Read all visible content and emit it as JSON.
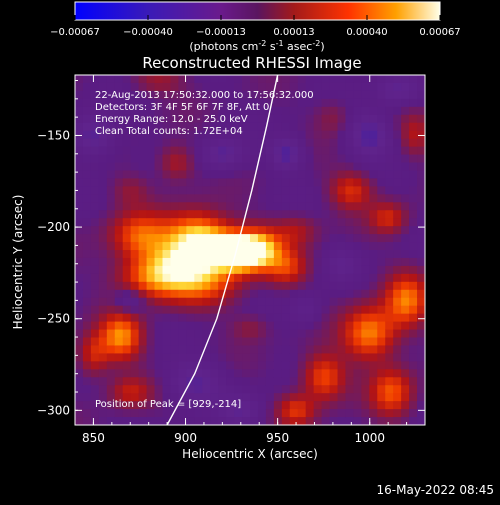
{
  "chart_data": {
    "type": "heatmap",
    "title": "Reconstructed RHESSI Image",
    "xlabel": "Heliocentric X (arcsec)",
    "ylabel": "Heliocentric Y (arcsec)",
    "xlim": [
      840,
      1030
    ],
    "ylim": [
      -308,
      -117
    ],
    "x_ticks": [
      850,
      900,
      950,
      1000
    ],
    "y_ticks": [
      -150,
      -200,
      -250,
      -300
    ],
    "annotations": [
      "22-Aug-2013 17:50:32.000 to 17:56:32.000",
      "Detectors: 3F 4F 5F 6F 7F 8F, Att 0",
      "Energy Range: 12.0 - 25.0 keV",
      "Clean     Total counts: 1.72E+04"
    ],
    "peak_label": "Position of Peak = [929,-214]",
    "peak": [
      929,
      -214
    ],
    "limb_curve": [
      [
        890,
        -308
      ],
      [
        905,
        -280
      ],
      [
        917,
        -250
      ],
      [
        927,
        -215
      ],
      [
        936,
        -180
      ],
      [
        944,
        -145
      ],
      [
        950,
        -117
      ]
    ],
    "colorbar": {
      "tick_labels": [
        "-0.00067",
        "-0.00040",
        "-0.00013",
        "0.00013",
        "0.00040",
        "0.00067"
      ],
      "range": [
        -0.00067,
        0.00067
      ],
      "unit_parts": [
        "(photons cm",
        "-2",
        " s",
        "-1",
        " asec",
        "-2",
        ")"
      ]
    },
    "blobs": [
      [
        929,
        -214,
        8,
        6,
        0.00067
      ],
      [
        915,
        -212,
        12,
        9,
        0.00045
      ],
      [
        940,
        -212,
        9,
        8,
        0.0005
      ],
      [
        905,
        -205,
        12,
        10,
        0.0004
      ],
      [
        893,
        -222,
        12,
        10,
        0.0004
      ],
      [
        875,
        -205,
        11,
        9,
        0.00036
      ],
      [
        878,
        -228,
        12,
        8,
        0.00028
      ],
      [
        910,
        -230,
        14,
        9,
        0.00032
      ],
      [
        955,
        -222,
        8,
        7,
        0.00028
      ],
      [
        960,
        -202,
        8,
        6,
        0.00018
      ],
      [
        862,
        -320,
        6,
        4,
        0.0
      ],
      [
        870,
        -180,
        7,
        6,
        0.00012
      ],
      [
        895,
        -165,
        7,
        7,
        0.0002
      ],
      [
        990,
        -180,
        8,
        7,
        0.00028
      ],
      [
        1010,
        -195,
        7,
        6,
        0.00025
      ],
      [
        1000,
        -258,
        10,
        10,
        0.00045
      ],
      [
        1020,
        -240,
        8,
        10,
        0.0004
      ],
      [
        1012,
        -290,
        8,
        9,
        0.00035
      ],
      [
        975,
        -282,
        8,
        9,
        0.00036
      ],
      [
        960,
        -300,
        7,
        6,
        0.00028
      ],
      [
        865,
        -260,
        8,
        9,
        0.00045
      ],
      [
        850,
        -270,
        6,
        8,
        0.00025
      ],
      [
        870,
        -290,
        8,
        6,
        0.00022
      ],
      [
        935,
        -255,
        7,
        5,
        0.00012
      ],
      [
        885,
        -120,
        10,
        5,
        0.00015
      ],
      [
        980,
        -140,
        7,
        7,
        0.00012
      ],
      [
        1025,
        -150,
        6,
        8,
        0.00018
      ],
      [
        955,
        -160,
        6,
        6,
        -0.0003
      ],
      [
        920,
        -160,
        8,
        6,
        -0.00025
      ],
      [
        850,
        -150,
        8,
        8,
        -0.00028
      ],
      [
        1000,
        -150,
        8,
        8,
        -0.0003
      ],
      [
        965,
        -245,
        6,
        6,
        -0.00015
      ],
      [
        905,
        -285,
        10,
        8,
        -0.00025
      ],
      [
        930,
        -300,
        8,
        6,
        -0.0002
      ],
      [
        870,
        -240,
        6,
        5,
        -0.0002
      ],
      [
        985,
        -220,
        6,
        6,
        -0.00015
      ],
      [
        1015,
        -125,
        8,
        6,
        -0.00022
      ]
    ]
  }
}
